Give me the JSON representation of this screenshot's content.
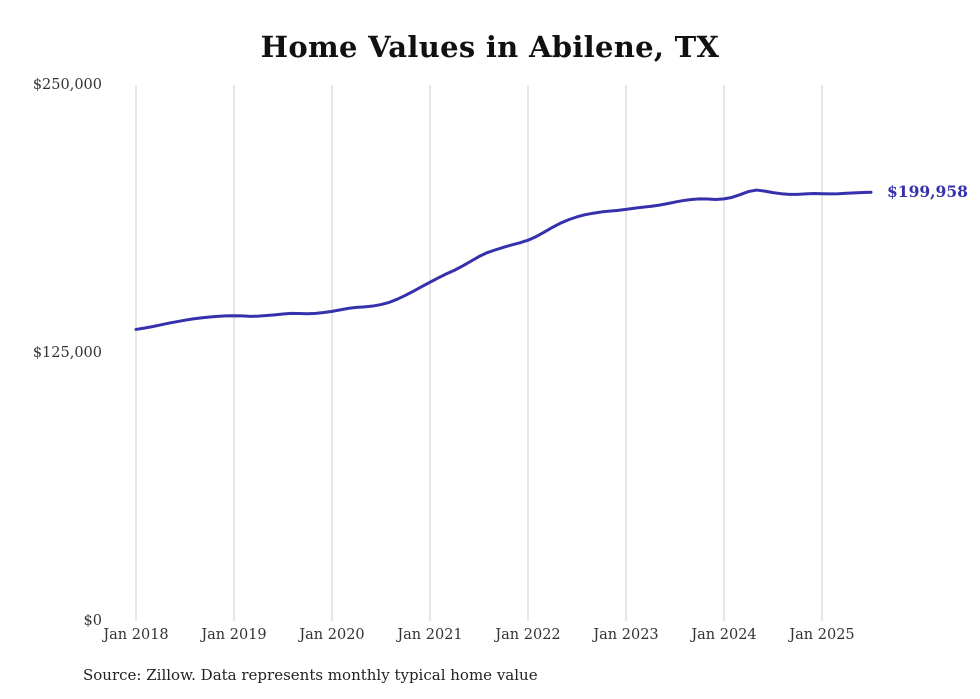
{
  "chart_data": {
    "type": "line",
    "title": "Home Values in Abilene, TX",
    "xlabel": "",
    "ylabel": "",
    "ylim": [
      0,
      250000
    ],
    "y_tick_values": [
      250000,
      125000,
      0
    ],
    "y_tick_labels": [
      "$250,000",
      "$125,000",
      "$0"
    ],
    "x_tick_labels": [
      "Jan 2018",
      "Jan 2019",
      "Jan 2020",
      "Jan 2021",
      "Jan 2022",
      "Jan 2023",
      "Jan 2024",
      "Jan 2025"
    ],
    "x_start": "Jan 2018",
    "x_end": "Jul 2025",
    "frequency": "monthly",
    "grid": "vertical-only",
    "legend": "none",
    "end_label": "$199,958",
    "latest_value": 199958,
    "source": "Source: Zillow. Data represents monthly typical home value",
    "colors": {
      "line": "#3530ac",
      "end_label": "#3530ac",
      "gridline": "#cccccc",
      "title": "#111111",
      "tick_text": "#333333"
    },
    "series": [
      {
        "name": "Typical home value",
        "values": [
          136000,
          136600,
          137300,
          138100,
          138900,
          139600,
          140300,
          140900,
          141400,
          141800,
          142100,
          142300,
          142400,
          142300,
          142100,
          142200,
          142500,
          142800,
          143200,
          143500,
          143400,
          143300,
          143500,
          143900,
          144400,
          145100,
          145800,
          146300,
          146500,
          146900,
          147600,
          148600,
          150100,
          151900,
          153900,
          156000,
          158000,
          160000,
          161900,
          163600,
          165600,
          167800,
          170000,
          171800,
          173100,
          174300,
          175400,
          176400,
          177600,
          179300,
          181400,
          183600,
          185600,
          187200,
          188500,
          189500,
          190200,
          190800,
          191200,
          191500,
          192000,
          192500,
          193000,
          193400,
          193900,
          194600,
          195400,
          196100,
          196600,
          196900,
          196800,
          196600,
          196900,
          197600,
          198900,
          200300,
          201000,
          200500,
          199800,
          199300,
          199000,
          199000,
          199200,
          199400,
          199300,
          199200,
          199300,
          199500,
          199700,
          199850,
          199958
        ]
      }
    ]
  }
}
